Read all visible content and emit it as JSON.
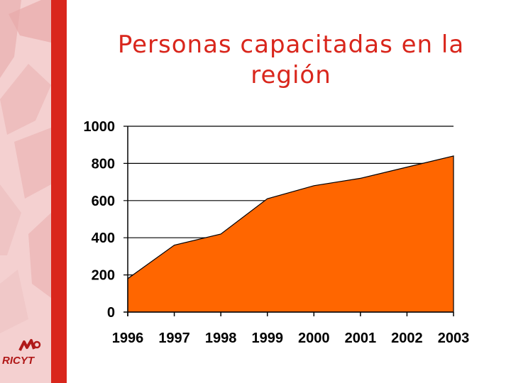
{
  "slide": {
    "title_line1": "Personas capacitadas en la",
    "title_line2": "región",
    "logo_text": "RICYT",
    "colors": {
      "accent": "#d9261c",
      "area": "#ff6600",
      "sidebar": "#f4d0d0"
    }
  },
  "chart_data": {
    "type": "area",
    "title": "Personas capacitadas en la región",
    "x": [
      "1996",
      "1997",
      "1998",
      "1999",
      "2000",
      "2001",
      "2002",
      "2003"
    ],
    "values": [
      180,
      360,
      420,
      610,
      680,
      720,
      780,
      840
    ],
    "ylim": [
      0,
      1000
    ],
    "yticks": [
      0,
      200,
      400,
      600,
      800,
      1000
    ],
    "grid": true,
    "legend": "none",
    "color": "#ff6600"
  }
}
